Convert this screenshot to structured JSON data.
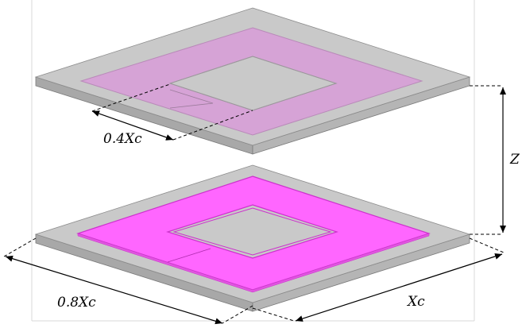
{
  "labels": {
    "top_dimension": "0.4Xc",
    "bottom_dimension": "0.8Xc",
    "side_dimension": "Xc",
    "gap_dimension": "Z"
  },
  "colors": {
    "board_top": "#c8c8c8",
    "board_side_left": "#a6a6a6",
    "board_side_right": "#b4b4b4",
    "coil_top_translucent": "#d9a6d9",
    "coil_bottom": "#ff66ff",
    "coil_bottom_edge": "#cc33cc",
    "dimension_line": "#000000"
  }
}
